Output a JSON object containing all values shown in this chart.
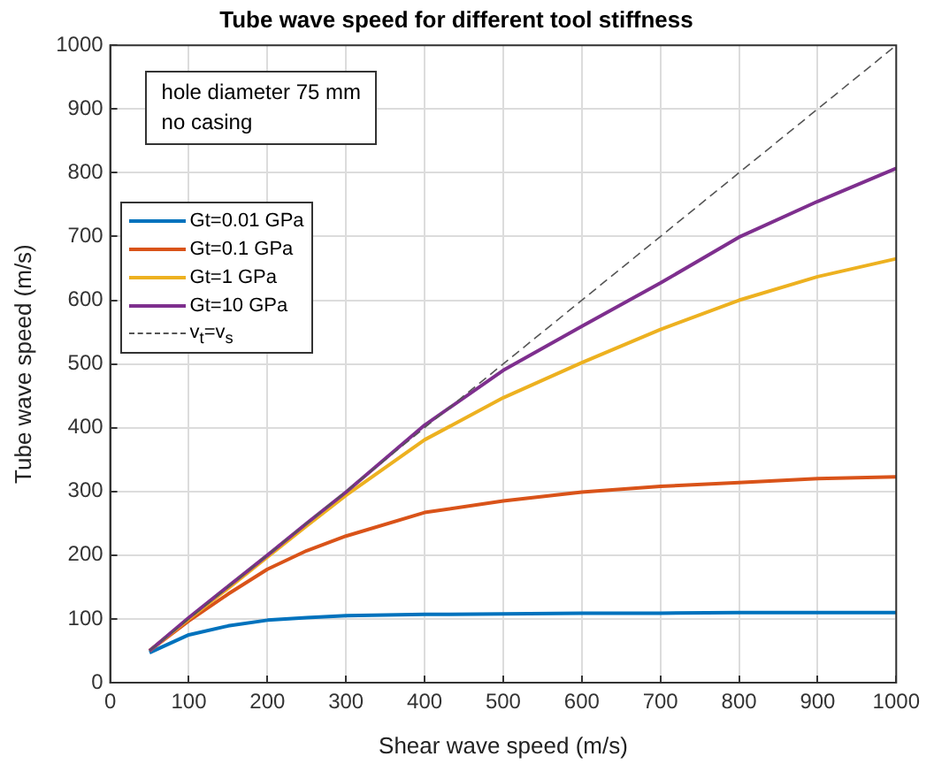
{
  "chart_data": {
    "type": "line",
    "title": "Tube wave speed for different tool stiffness",
    "xlabel": "Shear wave speed (m/s)",
    "ylabel": "Tube wave speed (m/s)",
    "annotations": [
      "hole diameter 75 mm",
      "no casing"
    ],
    "x": [
      50,
      100,
      150,
      200,
      250,
      300,
      400,
      500,
      600,
      700,
      800,
      900,
      1000
    ],
    "series": [
      {
        "name": "Gt=0.01 GPa",
        "color": "#0072bd",
        "values": [
          47,
          75,
          89,
          98,
          102,
          105,
          107,
          108,
          109,
          109,
          110,
          110,
          110
        ]
      },
      {
        "name": "Gt=0.1 GPa",
        "color": "#d95319",
        "values": [
          50,
          97,
          139,
          178,
          207,
          230,
          267,
          285,
          299,
          308,
          314,
          320,
          323
        ]
      },
      {
        "name": "Gt=1 GPa",
        "color": "#edb120",
        "values": [
          50,
          100,
          148,
          197,
          246,
          294,
          381,
          447,
          502,
          554,
          600,
          637,
          665
        ]
      },
      {
        "name": "Gt=10 GPa",
        "color": "#7e2f8e",
        "values": [
          50,
          102,
          151,
          200,
          250,
          299,
          404,
          490,
          559,
          627,
          699,
          755,
          807
        ]
      },
      {
        "name": "v$_{t}$=v$_{s}$",
        "color": "#555555",
        "line_style": "dashed",
        "x": [
          50,
          1000
        ],
        "values": [
          50,
          1000
        ]
      }
    ],
    "xlim": [
      0,
      1000
    ],
    "ylim": [
      0,
      1000
    ],
    "xticks": [
      0,
      100,
      200,
      300,
      400,
      500,
      600,
      700,
      800,
      900,
      1000
    ],
    "yticks": [
      0,
      100,
      200,
      300,
      400,
      500,
      600,
      700,
      800,
      900,
      1000
    ],
    "grid": true,
    "legend": "top left",
    "marker": "none"
  }
}
